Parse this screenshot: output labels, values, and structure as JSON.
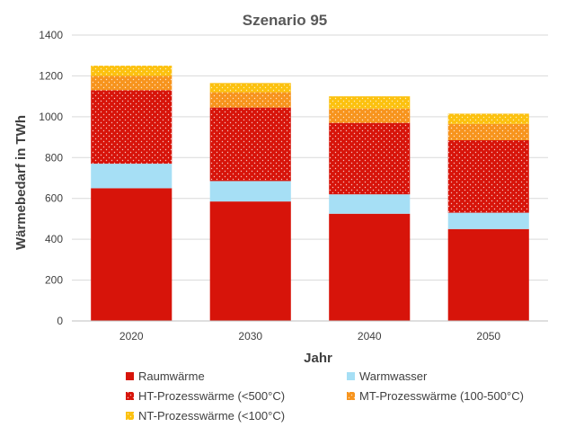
{
  "chart_data": {
    "type": "bar",
    "stacked": true,
    "title": "Szenario 95",
    "xlabel": "Jahr",
    "ylabel": "Wärmebedarf in TWh",
    "ylim": [
      0,
      1400
    ],
    "yticks": [
      0,
      200,
      400,
      600,
      800,
      1000,
      1200,
      1400
    ],
    "grid": true,
    "legend_position": "bottom",
    "categories": [
      "2020",
      "2030",
      "2040",
      "2050"
    ],
    "series": [
      {
        "name": "Raumwärme",
        "values": [
          650,
          585,
          525,
          450
        ],
        "color": "#d7140a",
        "pattern": false
      },
      {
        "name": "Warmwasser",
        "values": [
          120,
          100,
          95,
          80
        ],
        "color": "#a6dff5",
        "pattern": false
      },
      {
        "name": "HT-Prozesswärme (<500°C)",
        "values": [
          360,
          360,
          350,
          355
        ],
        "color": "#d7140a",
        "pattern": true
      },
      {
        "name": "MT-Prozesswärme (100-500°C)",
        "values": [
          70,
          75,
          70,
          80
        ],
        "color": "#f7941d",
        "pattern": true
      },
      {
        "name": "NT-Prozesswärme (<100°C)",
        "values": [
          50,
          45,
          60,
          50
        ],
        "color": "#fcc10f",
        "pattern": true
      }
    ]
  }
}
